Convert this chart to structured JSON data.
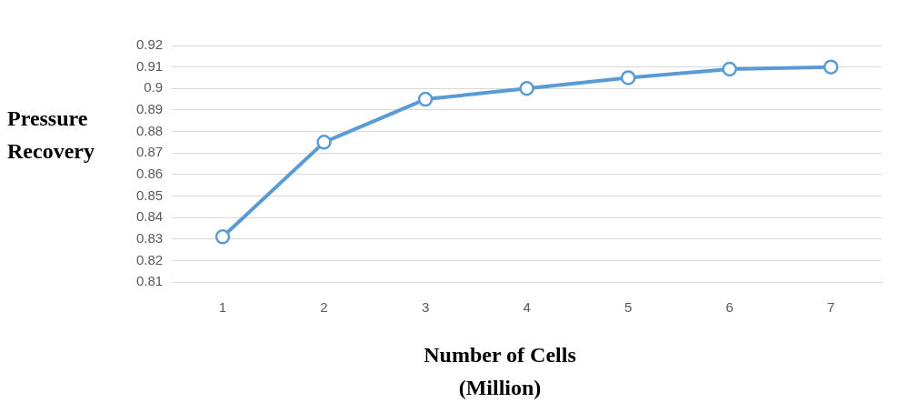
{
  "chart_data": {
    "type": "line",
    "xlabel": "Number of Cells\n(Million)",
    "ylabel": "Pressure\nRecovery",
    "categories": [
      "1",
      "2",
      "3",
      "4",
      "5",
      "6",
      "7"
    ],
    "series": [
      {
        "color": "#5b9bd5",
        "values": [
          0.831,
          0.875,
          0.895,
          0.9,
          0.905,
          0.909,
          0.91
        ]
      }
    ],
    "ylim": [
      0.81,
      0.92
    ],
    "yticks": [
      0.81,
      0.82,
      0.83,
      0.84,
      0.85,
      0.86,
      0.87,
      0.88,
      0.89,
      0.9,
      0.91,
      0.92
    ],
    "grid": "y",
    "legend": false,
    "marker": "circle",
    "line_style": "solid"
  }
}
